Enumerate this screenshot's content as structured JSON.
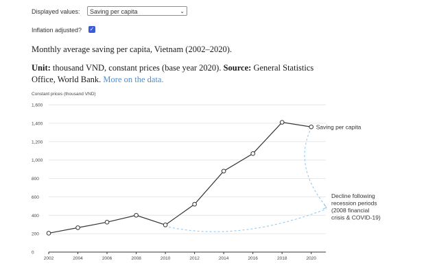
{
  "controls": {
    "display_label": "Displayed values:",
    "display_value": "Saving per capita",
    "inflation_label": "Inflation adjusted?",
    "inflation_checked": true
  },
  "heading": {
    "title": "Monthly average saving per capita, Vietnam (2002–2020).",
    "unit_label": "Unit:",
    "unit_text": "thousand VND, constant prices (base year 2020).",
    "source_label": "Source:",
    "source_text": "General Statistics Office, World Bank.",
    "link_text": "More on the data."
  },
  "chart_data": {
    "type": "line",
    "ylabel": "Constant prices (thousand VND)",
    "xlabel": "",
    "ylim": [
      0,
      1600
    ],
    "xlim": [
      2002,
      2021
    ],
    "y_ticks": [
      "0",
      "200",
      "400",
      "600",
      "800",
      "1,000",
      "1,200",
      "1,400",
      "1,600"
    ],
    "x_ticks": [
      "2002",
      "2004",
      "2006",
      "2008",
      "2010",
      "2012",
      "2014",
      "2016",
      "2018",
      "2020"
    ],
    "grid": true,
    "series": [
      {
        "name": "Saving per capita",
        "color": "#333333",
        "x": [
          2002,
          2004,
          2006,
          2008,
          2010,
          2012,
          2014,
          2016,
          2018,
          2020
        ],
        "values": [
          205,
          265,
          325,
          400,
          295,
          520,
          880,
          1070,
          1410,
          1360
        ]
      }
    ],
    "annotation": {
      "lines": [
        "Decline following",
        "recession periods",
        "(2008 financial",
        "crisis & COVID-19)"
      ],
      "color": "#8cc4ee"
    }
  }
}
